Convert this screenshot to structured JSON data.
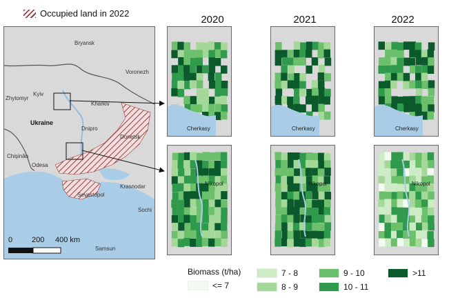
{
  "occupied_legend_label": "Occupied land in 2022",
  "years": [
    "2020",
    "2021",
    "2022"
  ],
  "overview_labels": {
    "bryansk": "Bryansk",
    "voronezh": "Voronezh",
    "kyiv": "Kyiv",
    "zhytomyr": "Zhytomyr",
    "kharkiv": "Kharkiv",
    "ukraine": "Ukraine",
    "dnipro": "Dnipro",
    "donetsk": "Donetsk",
    "chisinau": "Chișinău",
    "odesa": "Odesa",
    "krasnodar": "Krasnodar",
    "sevastopol": "Sevastopol",
    "sochi": "Sochi",
    "samsun": "Samsun"
  },
  "scalebar": {
    "tick0": "0",
    "tick1": "200",
    "tick2": "400 km"
  },
  "panel_cities": {
    "north": "Cherkasy",
    "south": "Nikopol"
  },
  "biomass_legend": {
    "title": "Biomass (t/ha)",
    "classes": [
      {
        "label": "<= 7",
        "color": "#f2fbf0"
      },
      {
        "label": "7 - 8",
        "color": "#cdebc4"
      },
      {
        "label": "8 - 9",
        "color": "#a3d898"
      },
      {
        "label": "9 - 10",
        "color": "#6cc06b"
      },
      {
        "label": "10 - 11",
        "color": "#2f9a4c"
      },
      {
        "label": ">11",
        "color": "#0b5a2b"
      }
    ]
  },
  "colors": {
    "water": "#a9cde7",
    "land": "#d9d9d9",
    "occupied_hatch": "#9b3b3b",
    "border": "#666666"
  }
}
